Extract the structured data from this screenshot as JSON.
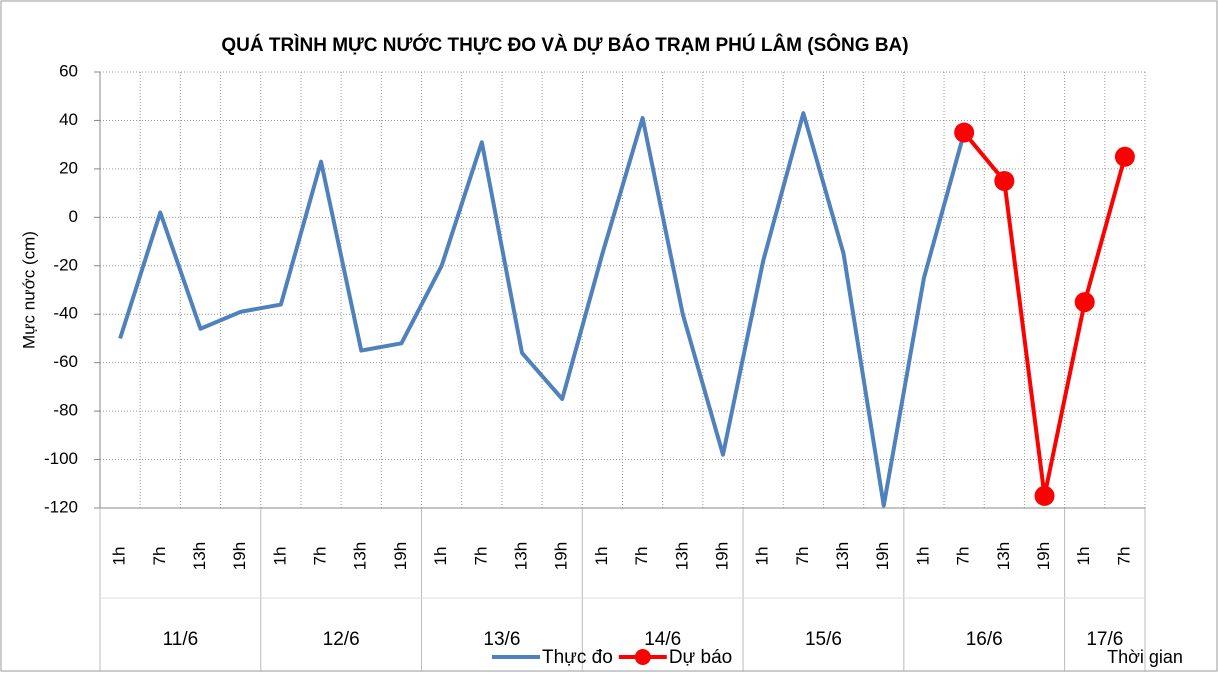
{
  "chart_data": {
    "type": "line",
    "title": "QUÁ TRÌNH MỰC NƯỚC THỰC ĐO VÀ DỰ BÁO TRẠM PHÚ LÂM (SÔNG BA)",
    "y_label": "Mực nước (cm)",
    "x_label": "Thời gian",
    "groups": [
      {
        "name": "11/6",
        "categories": [
          "1h",
          "7h",
          "13h",
          "19h"
        ]
      },
      {
        "name": "12/6",
        "categories": [
          "1h",
          "7h",
          "13h",
          "19h"
        ]
      },
      {
        "name": "13/6",
        "categories": [
          "1h",
          "7h",
          "13h",
          "19h"
        ]
      },
      {
        "name": "14/6",
        "categories": [
          "1h",
          "7h",
          "13h",
          "19h"
        ]
      },
      {
        "name": "15/6",
        "categories": [
          "1h",
          "7h",
          "13h",
          "19h"
        ]
      },
      {
        "name": "16/6",
        "categories": [
          "1h",
          "7h",
          "13h",
          "19h"
        ]
      },
      {
        "name": "17/6",
        "categories": [
          "1h",
          "7h"
        ]
      }
    ],
    "series": [
      {
        "name": "Thực đo",
        "color": "#4f81bd",
        "marker": false,
        "values": [
          -50,
          2,
          -46,
          -39,
          -36,
          23,
          -55,
          -52,
          -20,
          31,
          -56,
          -75,
          -15,
          41,
          -40,
          -98,
          -18,
          43,
          -15,
          -119,
          -25,
          35,
          null,
          null,
          null,
          null
        ]
      },
      {
        "name": "Dự báo",
        "color": "#ff0000",
        "marker": true,
        "values": [
          null,
          null,
          null,
          null,
          null,
          null,
          null,
          null,
          null,
          null,
          null,
          null,
          null,
          null,
          null,
          null,
          null,
          null,
          null,
          null,
          null,
          35,
          15,
          -115,
          -35,
          25
        ]
      }
    ],
    "ylim": [
      -120,
      60
    ],
    "yticks": [
      -120,
      -100,
      -80,
      -60,
      -40,
      -20,
      0,
      20,
      40,
      60
    ],
    "grid": true
  }
}
